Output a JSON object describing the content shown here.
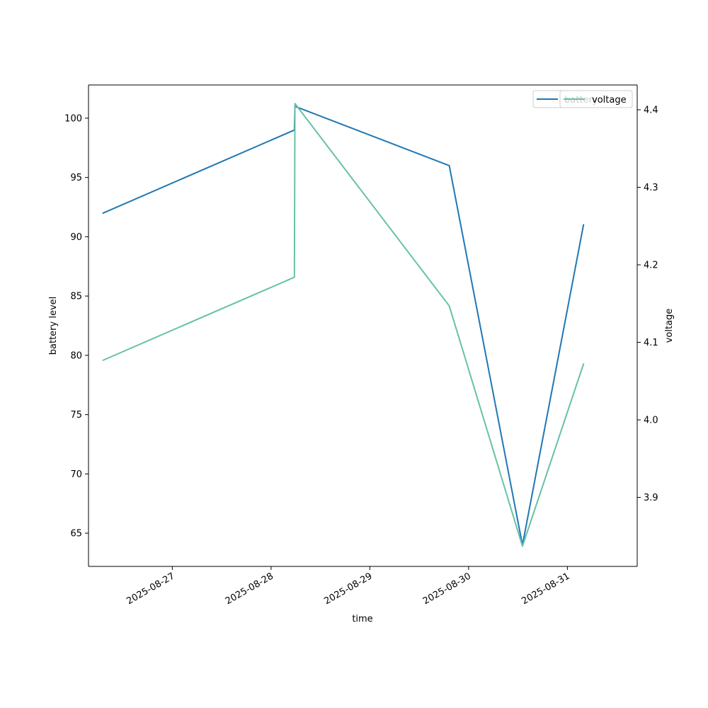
{
  "chart_data": {
    "type": "line",
    "xlabel": "time",
    "ylabel": "battery level",
    "y2label": "voltage",
    "x_ticks": [
      "2025-08-27",
      "2025-08-28",
      "2025-08-29",
      "2025-08-30",
      "2025-08-31"
    ],
    "x_range": [
      "2025-08-26 03:38",
      "2025-08-31 16:58"
    ],
    "y_range": [
      62.2,
      102.8
    ],
    "y_ticks": [
      65,
      70,
      75,
      80,
      85,
      90,
      95,
      100
    ],
    "y2_range": [
      3.811,
      4.432
    ],
    "y2_ticks": [
      3.9,
      4.0,
      4.1,
      4.2,
      4.3,
      4.4
    ],
    "legend_position": "upper right",
    "series": [
      {
        "name": "battery",
        "axis": "left",
        "color": "#1f77b4",
        "points": [
          {
            "x": "2025-08-26 07:12",
            "y": 92
          },
          {
            "x": "2025-08-28 05:40",
            "y": 99
          },
          {
            "x": "2025-08-28 05:48",
            "y": 101
          },
          {
            "x": "2025-08-29 19:18",
            "y": 96
          },
          {
            "x": "2025-08-30 13:05",
            "y": 64
          },
          {
            "x": "2025-08-31 03:55",
            "y": 91
          }
        ]
      },
      {
        "name": "voltage",
        "axis": "right",
        "color": "#66c2a5",
        "points": [
          {
            "x": "2025-08-26 07:12",
            "y": 4.077
          },
          {
            "x": "2025-08-28 05:40",
            "y": 4.184
          },
          {
            "x": "2025-08-28 05:48",
            "y": 4.408
          },
          {
            "x": "2025-08-29 19:18",
            "y": 4.147
          },
          {
            "x": "2025-08-30 13:05",
            "y": 3.837
          },
          {
            "x": "2025-08-31 03:55",
            "y": 4.072
          }
        ]
      }
    ]
  }
}
